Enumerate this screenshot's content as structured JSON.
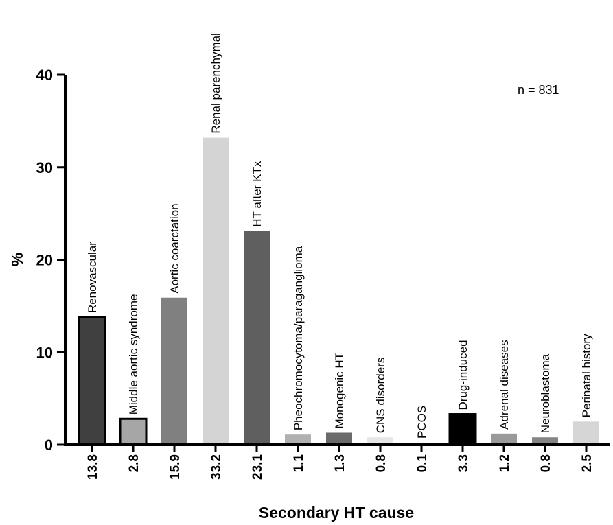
{
  "chart_data": {
    "type": "bar",
    "xlabel": "Secondary HT cause",
    "ylabel": "%",
    "ylim": [
      0,
      40
    ],
    "yticks": [
      0,
      10,
      20,
      30,
      40
    ],
    "annotation": "n = 831",
    "grid": false,
    "categories": [
      "Renovascular",
      "Middle aortic syndrome",
      "Aortic coarctation",
      "Renal parenchymal",
      "HT after KTx",
      "Pheochromocytoma/paraganglioma",
      "Monogenic HT",
      "CNS disorders",
      "PCOS",
      "Drug-induced",
      "Adrenal diseases",
      "Neuroblastoma",
      "Perinatal history"
    ],
    "values": [
      13.8,
      2.8,
      15.9,
      33.2,
      23.1,
      1.1,
      1.3,
      0.8,
      0.1,
      3.3,
      1.2,
      0.8,
      2.5
    ],
    "value_labels": [
      "13.8",
      "2.8",
      "15.9",
      "33.2",
      "23.1",
      "1.1",
      "1.3",
      "0.8",
      "0.1",
      "3.3",
      "1.2",
      "0.8",
      "2.5"
    ],
    "colors": [
      "#404040",
      "#a6a6a6",
      "#808080",
      "#d4d4d4",
      "#5f5f5f",
      "#b0b0b0",
      "#6a6a6a",
      "#e6e6e6",
      "#999999",
      "#000000",
      "#9a9a9a",
      "#858585",
      "#d6d6d6"
    ],
    "outlined": [
      true,
      true,
      false,
      false,
      false,
      false,
      false,
      false,
      false,
      true,
      false,
      false,
      false
    ]
  }
}
